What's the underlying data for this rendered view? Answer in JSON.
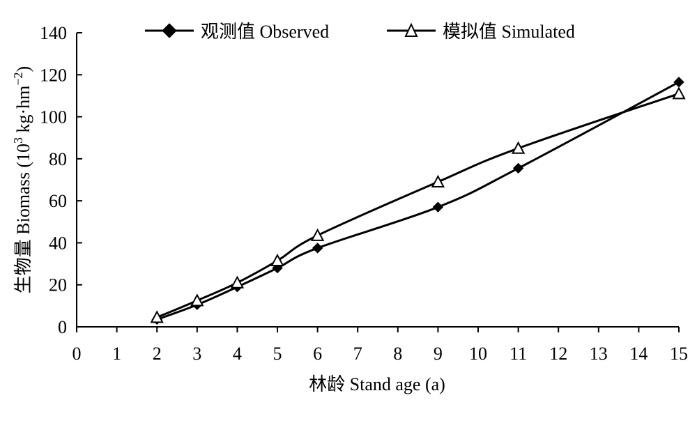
{
  "chart_data": {
    "type": "line",
    "xlabel": "林龄 Stand age (a)",
    "ylabel": {
      "prefix": "生物量 Biomass (10",
      "sup1": "3",
      "middle": " kg·hm",
      "sup2": "−2",
      "suffix": ")"
    },
    "x_ticks": [
      "0",
      "1",
      "2",
      "3",
      "4",
      "5",
      "6",
      "7",
      "8",
      "9",
      "10",
      "11",
      "12",
      "13",
      "14",
      "15"
    ],
    "y_ticks": [
      "0",
      "20",
      "40",
      "60",
      "80",
      "100",
      "120",
      "140"
    ],
    "x_positions": [
      2,
      3,
      4,
      5,
      6,
      9,
      11,
      15
    ],
    "x_axis_scale": "categorical-even",
    "ylim": [
      0,
      140
    ],
    "grid": false,
    "legend_position": "top",
    "series": [
      {
        "name": "观测值 Observed",
        "marker": "filled-diamond",
        "values": [
          3.5,
          10.5,
          19,
          28,
          37.5,
          57,
          75.5,
          116.5
        ]
      },
      {
        "name": "模拟值 Simulated",
        "marker": "open-triangle",
        "values": [
          4.5,
          12.5,
          21,
          31.5,
          43.5,
          69,
          85,
          111
        ]
      }
    ]
  }
}
